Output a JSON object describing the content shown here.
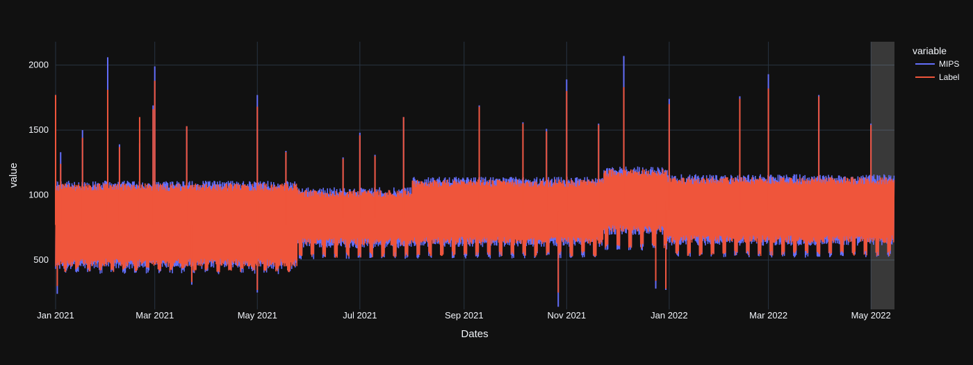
{
  "chart_data": {
    "type": "line",
    "xlabel": "Dates",
    "ylabel": "value",
    "x_range": [
      "2021-01-01",
      "2022-05-15"
    ],
    "ylim": [
      120,
      2180
    ],
    "x_ticks": [
      {
        "date": "2021-01-01",
        "label": "Jan 2021"
      },
      {
        "date": "2021-03-01",
        "label": "Mar 2021"
      },
      {
        "date": "2021-05-01",
        "label": "May 2021"
      },
      {
        "date": "2021-07-01",
        "label": "Jul 2021"
      },
      {
        "date": "2021-09-01",
        "label": "Sep 2021"
      },
      {
        "date": "2021-11-01",
        "label": "Nov 2021"
      },
      {
        "date": "2022-01-01",
        "label": "Jan 2022"
      },
      {
        "date": "2022-03-01",
        "label": "Mar 2022"
      },
      {
        "date": "2022-05-01",
        "label": "May 2022"
      }
    ],
    "y_ticks": [
      500,
      1000,
      1500,
      2000
    ],
    "grid": true,
    "legend": {
      "title": "variable",
      "position": "top-right"
    },
    "highlight_region": {
      "x0": "2022-05-01",
      "x1": "2022-05-15"
    },
    "series": [
      {
        "name": "MIPS",
        "color": "#636efa",
        "regimes": [
          {
            "from": "2021-01-01",
            "to": "2021-05-25",
            "low": 430,
            "high": 1110
          },
          {
            "from": "2021-05-25",
            "to": "2021-08-01",
            "low": 590,
            "high": 1060
          },
          {
            "from": "2021-08-01",
            "to": "2021-11-23",
            "low": 600,
            "high": 1140
          },
          {
            "from": "2021-11-23",
            "to": "2021-12-31",
            "low": 690,
            "high": 1220
          },
          {
            "from": "2021-12-31",
            "to": "2022-05-15",
            "low": 610,
            "high": 1160
          }
        ],
        "spikes": [
          {
            "date": "2021-01-01",
            "value": 1770
          },
          {
            "date": "2021-01-02",
            "value": 240
          },
          {
            "date": "2021-01-04",
            "value": 1330
          },
          {
            "date": "2021-01-17",
            "value": 1500
          },
          {
            "date": "2021-02-01",
            "value": 2060
          },
          {
            "date": "2021-02-08",
            "value": 1390
          },
          {
            "date": "2021-02-20",
            "value": 1400
          },
          {
            "date": "2021-02-28",
            "value": 1690
          },
          {
            "date": "2021-03-01",
            "value": 1990
          },
          {
            "date": "2021-03-20",
            "value": 1530
          },
          {
            "date": "2021-03-23",
            "value": 310
          },
          {
            "date": "2021-05-01",
            "value": 1770
          },
          {
            "date": "2021-05-01",
            "value": 250
          },
          {
            "date": "2021-05-18",
            "value": 1340
          },
          {
            "date": "2021-06-21",
            "value": 1290
          },
          {
            "date": "2021-07-01",
            "value": 1480
          },
          {
            "date": "2021-07-10",
            "value": 1310
          },
          {
            "date": "2021-07-27",
            "value": 1600
          },
          {
            "date": "2021-09-10",
            "value": 1690
          },
          {
            "date": "2021-10-06",
            "value": 1560
          },
          {
            "date": "2021-10-20",
            "value": 1510
          },
          {
            "date": "2021-10-27",
            "value": 140
          },
          {
            "date": "2021-11-01",
            "value": 1890
          },
          {
            "date": "2021-11-20",
            "value": 1550
          },
          {
            "date": "2021-12-05",
            "value": 2070
          },
          {
            "date": "2021-12-24",
            "value": 280
          },
          {
            "date": "2021-12-30",
            "value": 270
          },
          {
            "date": "2022-01-01",
            "value": 1740
          },
          {
            "date": "2022-02-12",
            "value": 1760
          },
          {
            "date": "2022-03-01",
            "value": 1930
          },
          {
            "date": "2022-03-31",
            "value": 1770
          },
          {
            "date": "2022-05-01",
            "value": 1550
          }
        ]
      },
      {
        "name": "Label",
        "color": "#ef553b",
        "regimes": [
          {
            "from": "2021-01-01",
            "to": "2021-05-25",
            "low": 450,
            "high": 1090
          },
          {
            "from": "2021-05-25",
            "to": "2021-08-01",
            "low": 610,
            "high": 1040
          },
          {
            "from": "2021-08-01",
            "to": "2021-11-23",
            "low": 620,
            "high": 1120
          },
          {
            "from": "2021-11-23",
            "to": "2021-12-31",
            "low": 710,
            "high": 1200
          },
          {
            "from": "2021-12-31",
            "to": "2022-05-15",
            "low": 630,
            "high": 1140
          }
        ],
        "spikes": [
          {
            "date": "2021-01-01",
            "value": 1770
          },
          {
            "date": "2021-01-02",
            "value": 300
          },
          {
            "date": "2021-01-04",
            "value": 1240
          },
          {
            "date": "2021-01-17",
            "value": 1440
          },
          {
            "date": "2021-02-01",
            "value": 1810
          },
          {
            "date": "2021-02-08",
            "value": 1370
          },
          {
            "date": "2021-02-20",
            "value": 1600
          },
          {
            "date": "2021-02-28",
            "value": 1660
          },
          {
            "date": "2021-03-01",
            "value": 1880
          },
          {
            "date": "2021-03-20",
            "value": 1530
          },
          {
            "date": "2021-03-23",
            "value": 330
          },
          {
            "date": "2021-05-01",
            "value": 1680
          },
          {
            "date": "2021-05-01",
            "value": 270
          },
          {
            "date": "2021-05-18",
            "value": 1330
          },
          {
            "date": "2021-06-21",
            "value": 1280
          },
          {
            "date": "2021-07-01",
            "value": 1460
          },
          {
            "date": "2021-07-10",
            "value": 1300
          },
          {
            "date": "2021-07-27",
            "value": 1600
          },
          {
            "date": "2021-09-10",
            "value": 1680
          },
          {
            "date": "2021-10-06",
            "value": 1550
          },
          {
            "date": "2021-10-20",
            "value": 1490
          },
          {
            "date": "2021-10-27",
            "value": 250
          },
          {
            "date": "2021-11-01",
            "value": 1800
          },
          {
            "date": "2021-11-20",
            "value": 1540
          },
          {
            "date": "2021-12-05",
            "value": 1830
          },
          {
            "date": "2021-12-24",
            "value": 340
          },
          {
            "date": "2021-12-30",
            "value": 280
          },
          {
            "date": "2022-01-01",
            "value": 1700
          },
          {
            "date": "2022-02-12",
            "value": 1740
          },
          {
            "date": "2022-03-01",
            "value": 1820
          },
          {
            "date": "2022-03-31",
            "value": 1760
          },
          {
            "date": "2022-05-01",
            "value": 1540
          }
        ]
      }
    ]
  }
}
